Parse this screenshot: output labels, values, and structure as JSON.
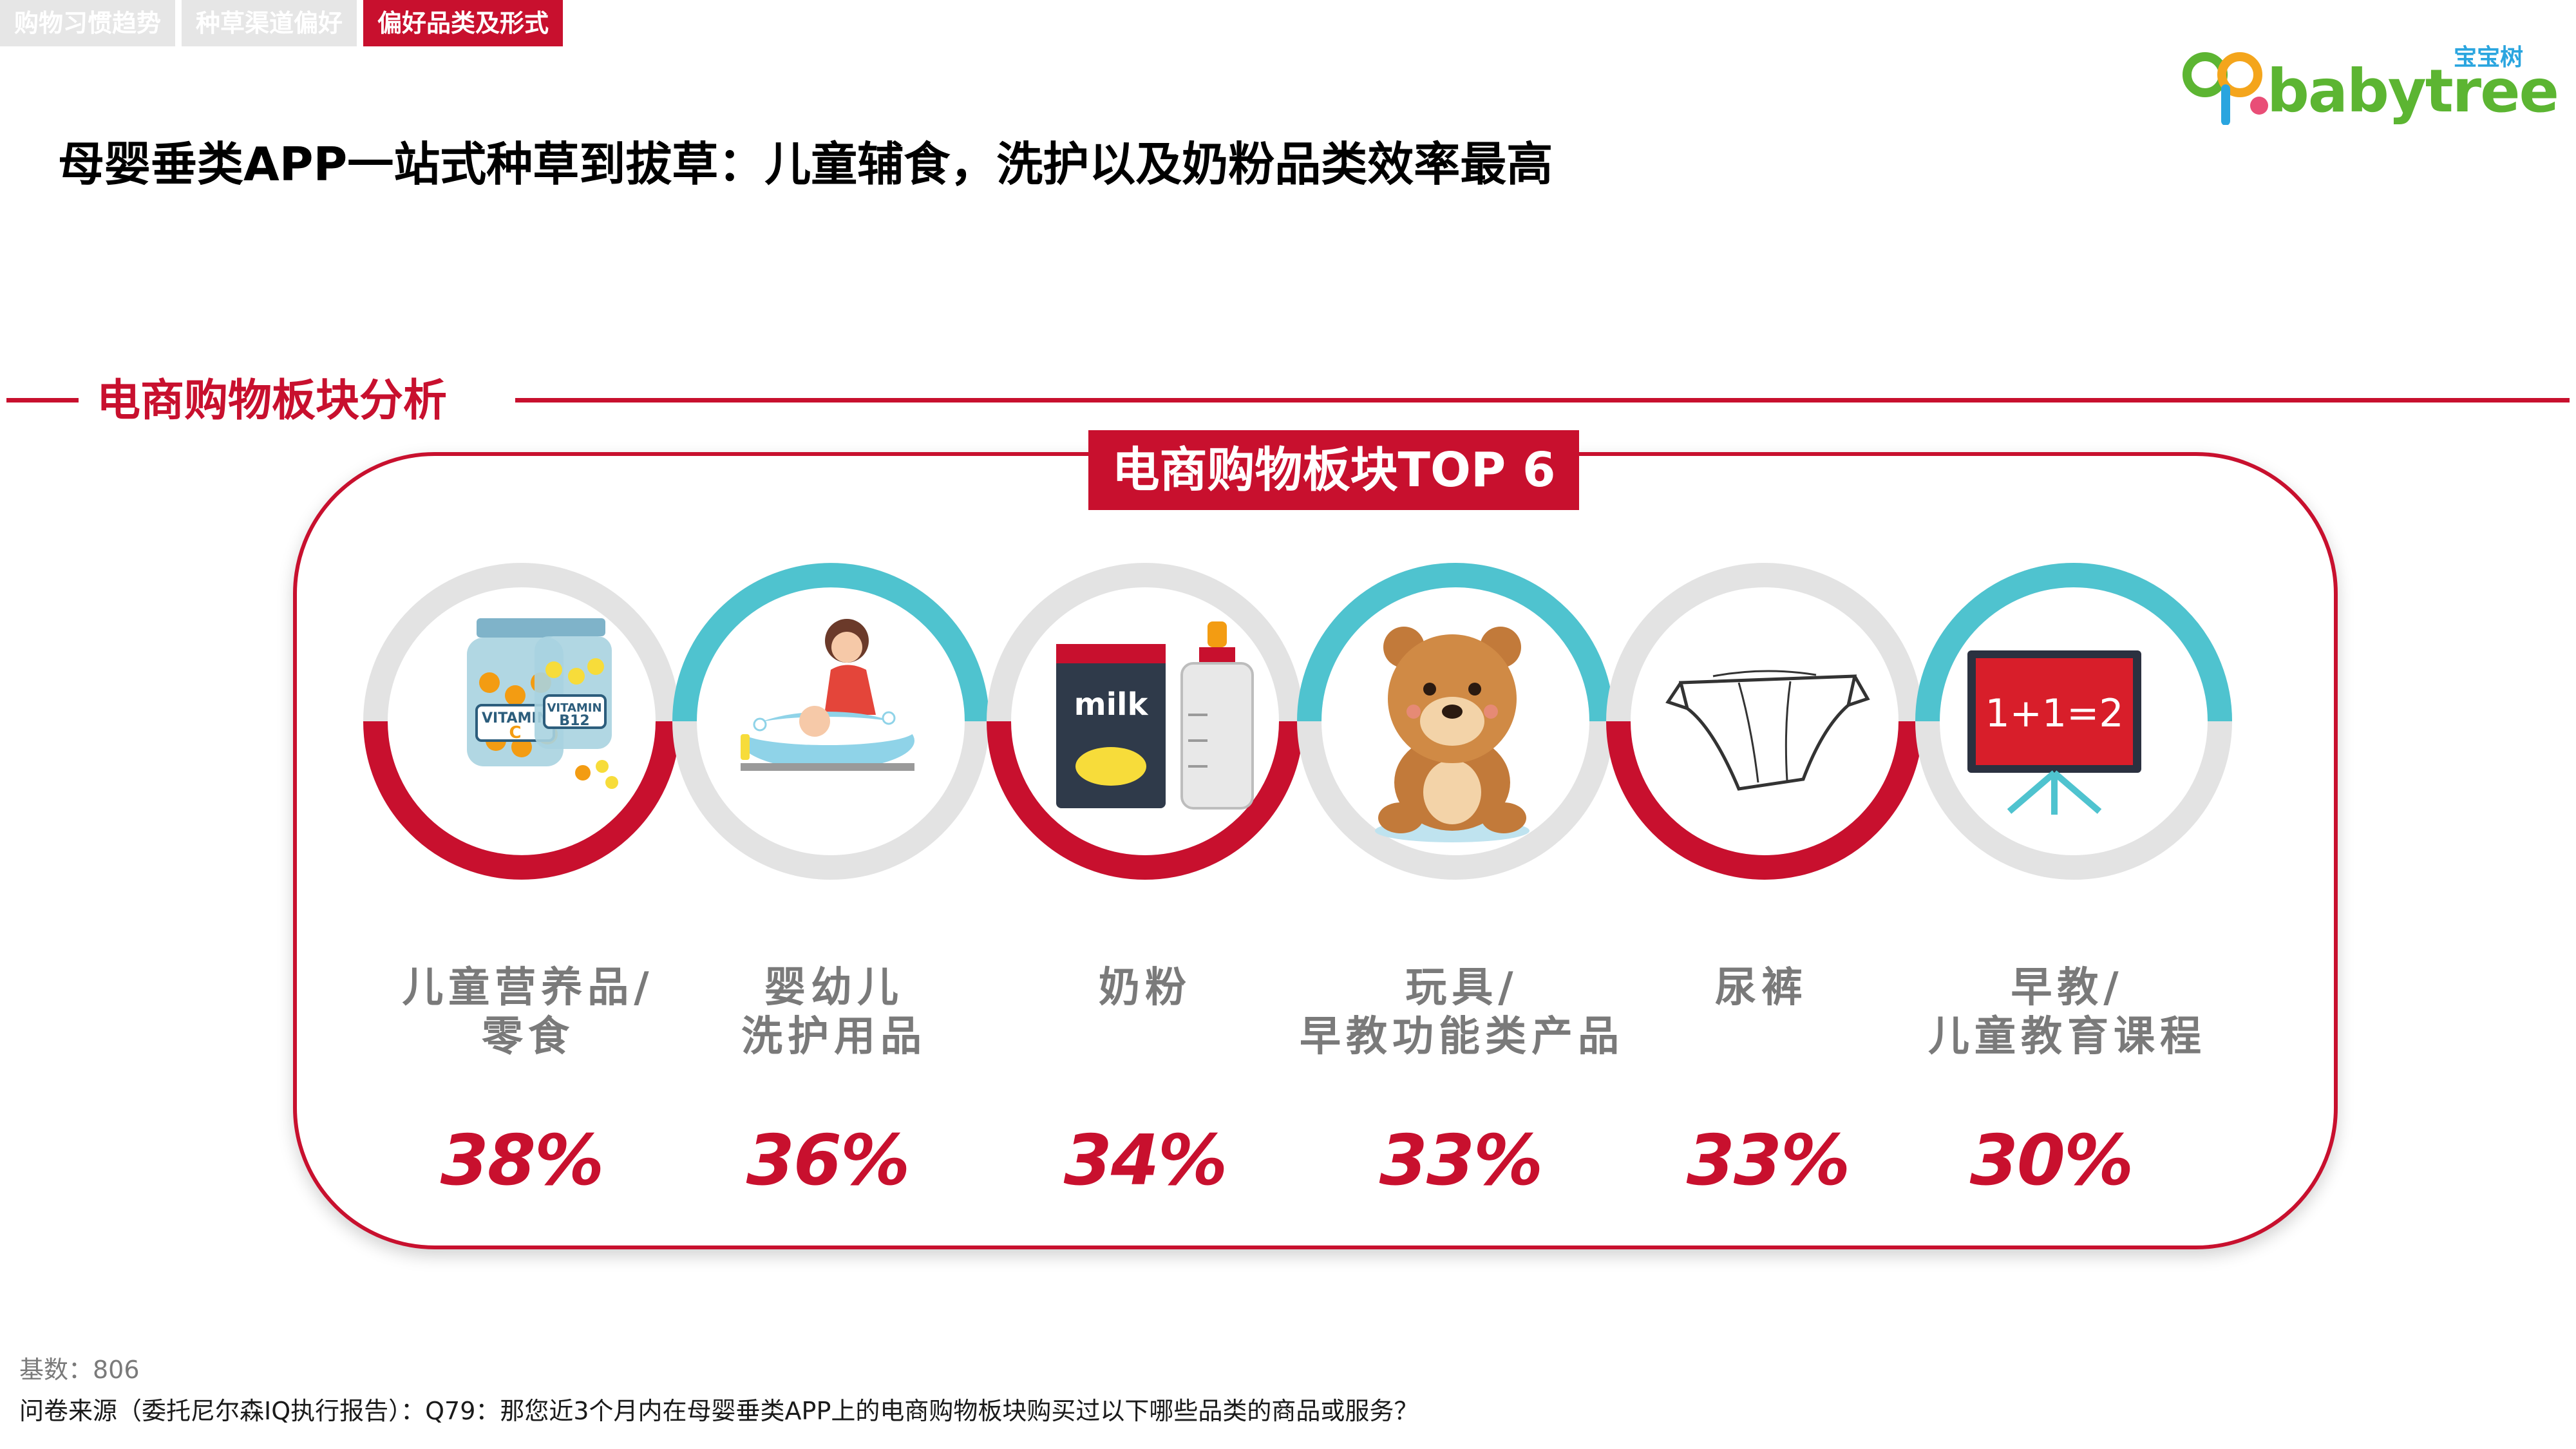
{
  "tabs": [
    {
      "label": "购物习惯趋势",
      "active": false
    },
    {
      "label": "种草渠道偏好",
      "active": false
    },
    {
      "label": "偏好品类及形式",
      "active": true
    }
  ],
  "logo": {
    "text": "babytree",
    "cn": "宝宝树"
  },
  "headline": "母婴垂类APP一站式种草到拔草：儿童辅食，洗护以及奶粉品类效率最高",
  "section": {
    "title": "电商购物板块分析"
  },
  "panel": {
    "title": "电商购物板块TOP 6"
  },
  "colors": {
    "accent": "#c8102e",
    "teal": "#4fc3cf",
    "ring_grey": "#e3e3e3",
    "label_grey": "#7a7a7a"
  },
  "categories": [
    {
      "line1": "儿童营养品/",
      "line2": "零食",
      "pct": "38%",
      "icon": "vitamin-bottles-icon"
    },
    {
      "line1": "婴幼儿",
      "line2": "洗护用品",
      "pct": "36%",
      "icon": "baby-bath-icon"
    },
    {
      "line1": "奶粉",
      "line2": "",
      "pct": "34%",
      "icon": "milk-powder-icon"
    },
    {
      "line1": "玩具/",
      "line2": "早教功能类产品",
      "pct": "33%",
      "icon": "teddy-bear-icon"
    },
    {
      "line1": "尿裤",
      "line2": "",
      "pct": "33%",
      "icon": "diaper-icon"
    },
    {
      "line1": "早教/",
      "line2": "儿童教育课程",
      "pct": "30%",
      "icon": "blackboard-icon"
    }
  ],
  "footer": {
    "base": "基数：806",
    "source": "问卷来源（委托尼尔森IQ执行报告）：Q79：那您近3个月内在母婴垂类APP上的电商购物板块购买过以下哪些品类的商品或服务？"
  }
}
